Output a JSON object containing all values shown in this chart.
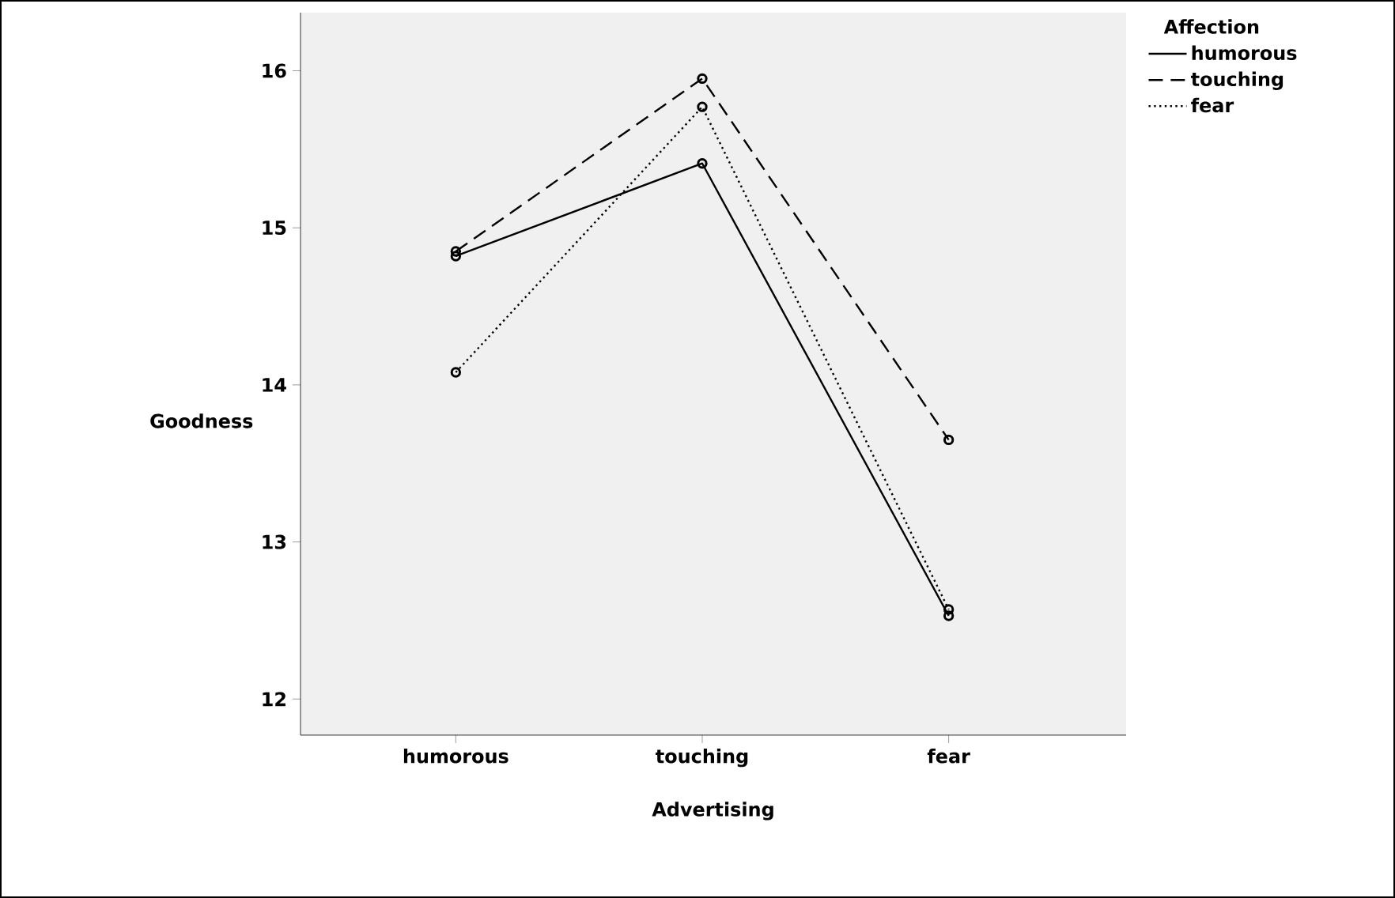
{
  "chart_data": {
    "type": "line",
    "xlabel": "Advertising",
    "ylabel": "Goodness",
    "legend_title": "Affection",
    "categories": [
      "humorous",
      "touching",
      "fear"
    ],
    "series": [
      {
        "name": "humorous",
        "color": "#000000",
        "line_style": "solid",
        "values": [
          14.82,
          15.41,
          12.53
        ]
      },
      {
        "name": "touching",
        "color": "#000000",
        "line_style": "dashed",
        "values": [
          14.85,
          15.95,
          13.65
        ]
      },
      {
        "name": "fear",
        "color": "#000000",
        "line_style": "dotted",
        "values": [
          14.08,
          15.77,
          12.57
        ]
      }
    ],
    "ylim": [
      11.77,
      16.37
    ],
    "yticks": [
      12,
      13,
      14,
      15,
      16
    ],
    "grid": false,
    "legend": "right",
    "marker": "circle"
  }
}
